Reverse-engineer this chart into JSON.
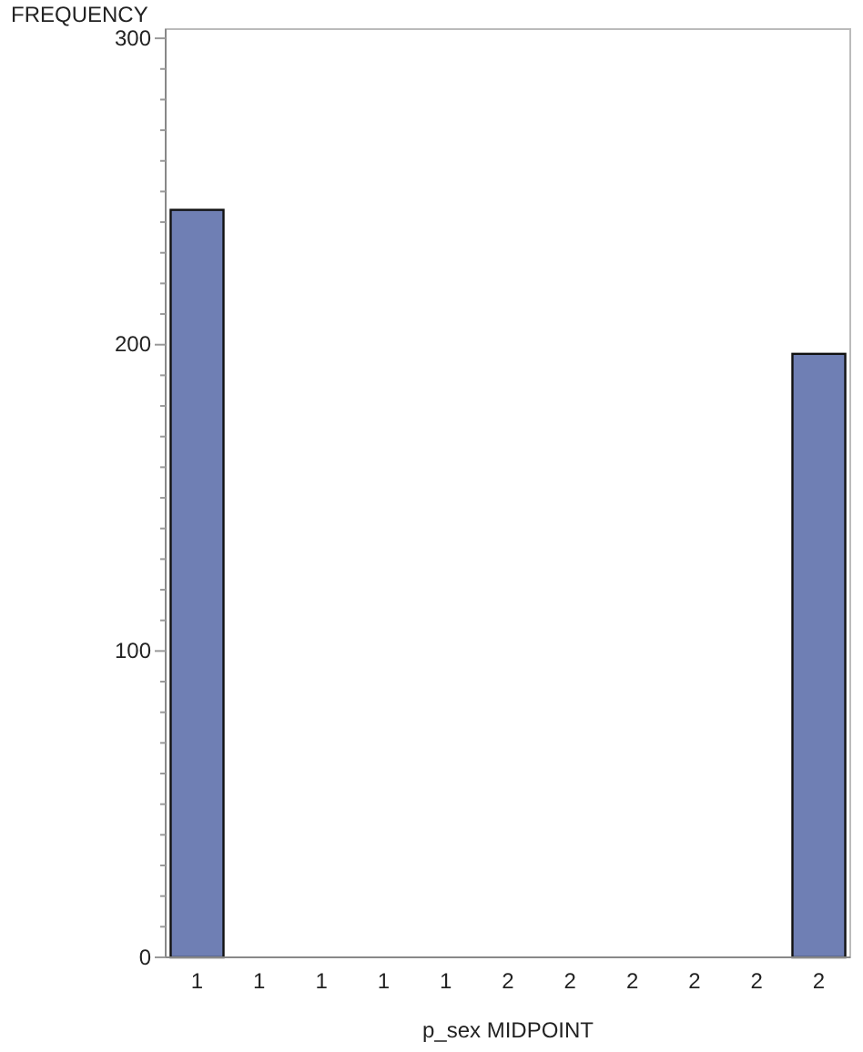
{
  "chart_data": {
    "type": "bar",
    "ylabel": "FREQUENCY",
    "xlabel": "p_sex MIDPOINT",
    "categories": [
      "1",
      "1",
      "1",
      "1",
      "1",
      "2",
      "2",
      "2",
      "2",
      "2",
      "2"
    ],
    "values": [
      244,
      0,
      0,
      0,
      0,
      0,
      0,
      0,
      0,
      0,
      197
    ],
    "color": "#6f7fb4",
    "ylim": [
      0,
      303
    ],
    "yticks": [
      0,
      {
        "value": 10,
        "label": null
      },
      {
        "value": 20,
        "label": null
      },
      {
        "value": 30,
        "label": null
      },
      {
        "value": 40,
        "label": null
      },
      {
        "value": 50,
        "label": null
      },
      {
        "value": 60,
        "label": null
      },
      {
        "value": 70,
        "label": null
      },
      {
        "value": 80,
        "label": null
      },
      {
        "value": 90,
        "label": null
      },
      100,
      {
        "value": 110,
        "label": null
      },
      {
        "value": 120,
        "label": null
      },
      {
        "value": 130,
        "label": null
      },
      {
        "value": 140,
        "label": null
      },
      {
        "value": 150,
        "label": null
      },
      {
        "value": 160,
        "label": null
      },
      {
        "value": 170,
        "label": null
      },
      {
        "value": 180,
        "label": null
      },
      {
        "value": 190,
        "label": null
      },
      200,
      {
        "value": 210,
        "label": null
      },
      {
        "value": 220,
        "label": null
      },
      {
        "value": 230,
        "label": null
      },
      {
        "value": 240,
        "label": null
      },
      {
        "value": 250,
        "label": null
      },
      {
        "value": 260,
        "label": null
      },
      {
        "value": 270,
        "label": null
      },
      {
        "value": 280,
        "label": null
      },
      {
        "value": 290,
        "label": null
      },
      300
    ],
    "grid": false
  }
}
